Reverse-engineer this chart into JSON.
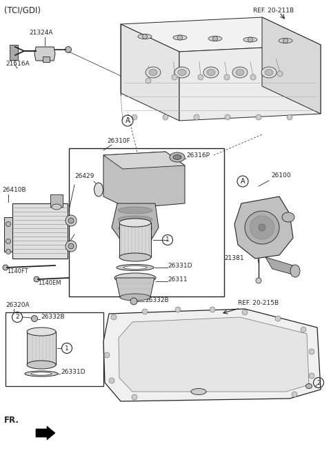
{
  "title": "(TCI/GDI)",
  "bg": "#ffffff",
  "lc": "#222222",
  "labels": {
    "ref_211b": "REF. 20-211B",
    "ref_215b": "REF. 20-215B",
    "21324A": "21324A",
    "21516A": "21516A",
    "26310F": "26310F",
    "26316P": "26316P",
    "26429": "26429",
    "26410B": "26410B",
    "1140FT": "1140FT",
    "1140EM": "1140EM",
    "26331D": "26331D",
    "26311": "26311",
    "26332B_1": "26332B",
    "26332B_2": "26332B",
    "26320A": "26320A",
    "26100": "26100",
    "21381": "21381",
    "fr": "FR."
  },
  "A_label": "A",
  "num1": "1",
  "num2": "2",
  "fs_label": 6.5,
  "fs_title": 8.5,
  "fs_num": 6.5
}
